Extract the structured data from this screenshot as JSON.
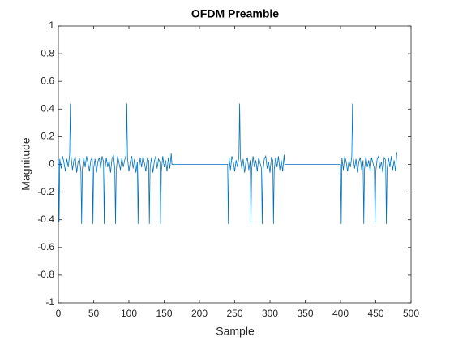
{
  "chart_data": {
    "type": "line",
    "title": "OFDM Preamble",
    "xlabel": "Sample",
    "ylabel": "Magnitude",
    "xlim": [
      0,
      500
    ],
    "xticks": [
      0,
      50,
      100,
      150,
      200,
      250,
      300,
      350,
      400,
      450,
      500
    ],
    "ylim": [
      -1,
      1
    ],
    "yticks": [
      -1,
      -0.8,
      -0.6,
      -0.4,
      -0.2,
      0,
      0.2,
      0.4,
      0.6,
      0.8,
      1
    ],
    "grid": false,
    "color": "#0072bd",
    "x": [
      0,
      1,
      2,
      4,
      6,
      8,
      10,
      12,
      14,
      16,
      17,
      18,
      20,
      22,
      24,
      26,
      28,
      30,
      32,
      33,
      34,
      36,
      38,
      40,
      42,
      44,
      46,
      48,
      49,
      50,
      52,
      54,
      56,
      58,
      60,
      62,
      64,
      65,
      66,
      68,
      70,
      72,
      74,
      76,
      78,
      80,
      81,
      82,
      84,
      86,
      88,
      90,
      92,
      94,
      96,
      97,
      98,
      100,
      102,
      104,
      106,
      108,
      110,
      112,
      113,
      114,
      116,
      118,
      120,
      122,
      124,
      126,
      128,
      129,
      130,
      132,
      134,
      136,
      138,
      140,
      142,
      144,
      145,
      146,
      148,
      150,
      152,
      154,
      156,
      158,
      160,
      161,
      240,
      241,
      242,
      244,
      246,
      248,
      250,
      252,
      254,
      256,
      257,
      258,
      260,
      262,
      264,
      266,
      268,
      270,
      272,
      273,
      274,
      276,
      278,
      280,
      282,
      284,
      286,
      288,
      289,
      290,
      292,
      294,
      296,
      298,
      300,
      302,
      304,
      305,
      306,
      308,
      310,
      312,
      314,
      316,
      318,
      320,
      321,
      400,
      401,
      402,
      404,
      406,
      408,
      410,
      412,
      414,
      416,
      417,
      418,
      420,
      422,
      424,
      426,
      428,
      430,
      432,
      433,
      434,
      436,
      438,
      440,
      442,
      444,
      446,
      448,
      449,
      450,
      452,
      454,
      456,
      458,
      460,
      462,
      464,
      465,
      466,
      468,
      470,
      472,
      474,
      476,
      478,
      480
    ],
    "values": [
      0.05,
      -0.42,
      0.04,
      -0.03,
      0.06,
      0.01,
      -0.05,
      0.04,
      -0.02,
      0.07,
      0.44,
      0.06,
      -0.04,
      0.03,
      0.05,
      -0.06,
      0.02,
      0.04,
      -0.05,
      -0.43,
      -0.04,
      0.05,
      -0.02,
      0.06,
      0.01,
      -0.05,
      0.03,
      0.05,
      -0.43,
      -0.03,
      0.04,
      -0.06,
      0.02,
      0.05,
      -0.03,
      0.06,
      0.02,
      -0.43,
      -0.04,
      0.05,
      -0.02,
      0.03,
      -0.06,
      0.04,
      0.07,
      -0.03,
      -0.43,
      -0.05,
      0.06,
      0.01,
      -0.04,
      0.05,
      -0.02,
      0.03,
      0.07,
      0.44,
      0.05,
      -0.05,
      0.02,
      0.06,
      -0.03,
      0.04,
      -0.06,
      0.02,
      -0.43,
      -0.04,
      0.05,
      -0.02,
      0.06,
      0.01,
      -0.05,
      0.04,
      0.03,
      -0.43,
      -0.03,
      0.05,
      -0.06,
      0.02,
      0.06,
      -0.03,
      0.04,
      0.02,
      -0.43,
      -0.05,
      0.06,
      -0.02,
      0.03,
      -0.05,
      0.05,
      -0.03,
      0.08,
      0,
      0,
      -0.43,
      0.05,
      -0.04,
      0.06,
      0.02,
      -0.05,
      0.03,
      -0.02,
      0.06,
      0.44,
      0.05,
      -0.03,
      0.04,
      -0.06,
      0.02,
      0.05,
      -0.04,
      0.03,
      -0.43,
      -0.04,
      0.06,
      -0.02,
      0.03,
      -0.05,
      0.05,
      0.01,
      -0.03,
      -0.43,
      -0.05,
      0.04,
      0.06,
      -0.03,
      0.02,
      -0.06,
      0.05,
      0.03,
      -0.43,
      -0.04,
      0.05,
      -0.02,
      0.06,
      -0.04,
      0.03,
      -0.05,
      0.07,
      0,
      0,
      -0.43,
      0.05,
      -0.04,
      0.06,
      0.02,
      -0.05,
      0.03,
      -0.02,
      0.06,
      0.44,
      0.05,
      -0.03,
      0.04,
      -0.06,
      0.02,
      0.05,
      -0.04,
      0.03,
      -0.43,
      -0.04,
      0.06,
      -0.02,
      0.03,
      -0.05,
      0.05,
      0.01,
      -0.03,
      -0.43,
      -0.05,
      0.04,
      0.06,
      -0.03,
      0.02,
      -0.06,
      0.05,
      0.03,
      -0.43,
      -0.04,
      0.05,
      -0.02,
      0.06,
      -0.04,
      0.03,
      -0.05,
      0.09
    ]
  }
}
